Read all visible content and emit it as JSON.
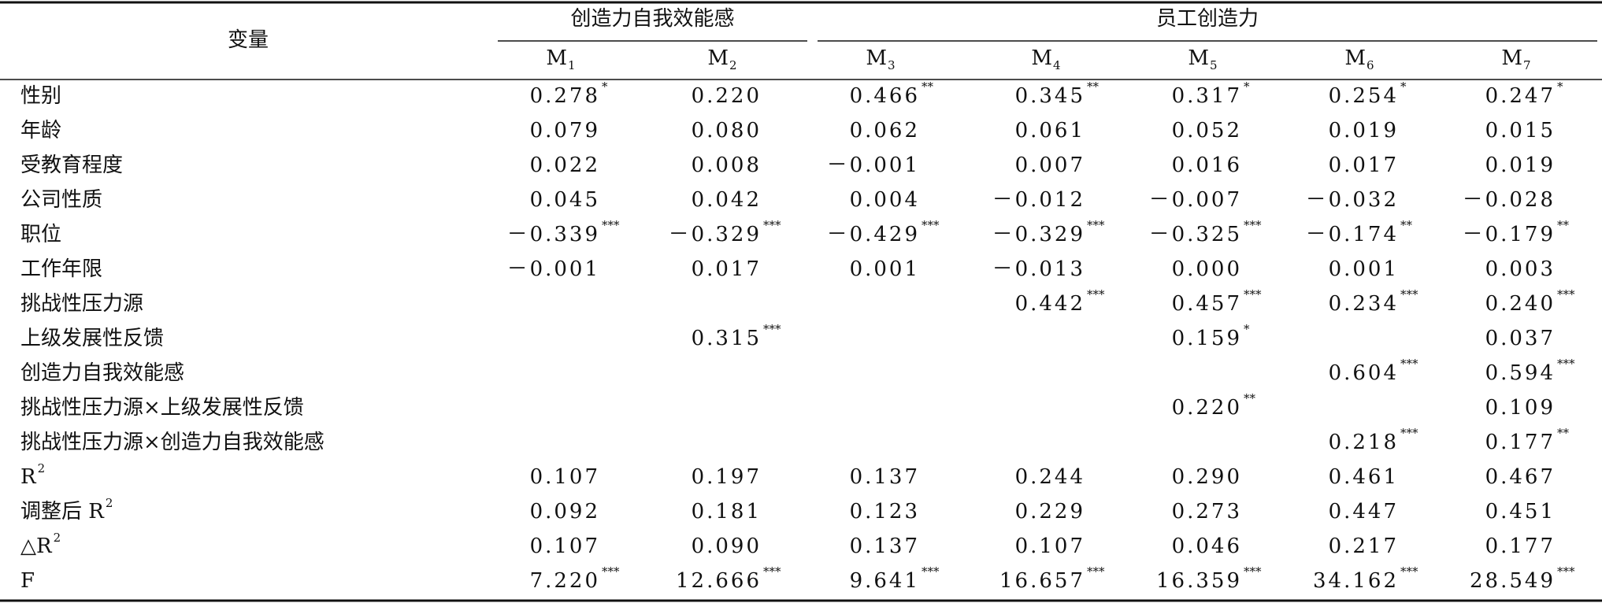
{
  "table": {
    "corner": "变量",
    "groups": [
      {
        "title": "创造力自我效能感",
        "span": [
          0,
          1
        ]
      },
      {
        "title": "员工创造力",
        "span": [
          2,
          6
        ]
      }
    ],
    "models": [
      {
        "text": "M",
        "sub": "1"
      },
      {
        "text": "M",
        "sub": "2"
      },
      {
        "text": "M",
        "sub": "3"
      },
      {
        "text": "M",
        "sub": "4"
      },
      {
        "text": "M",
        "sub": "5"
      },
      {
        "text": "M",
        "sub": "6"
      },
      {
        "text": "M",
        "sub": "7"
      }
    ],
    "rows": [
      {
        "label": "性别",
        "cells": [
          {
            "v": "0.278",
            "sig": "*"
          },
          {
            "v": "0.220"
          },
          {
            "v": "0.466",
            "sig": "**"
          },
          {
            "v": "0.345",
            "sig": "**"
          },
          {
            "v": "0.317",
            "sig": "*"
          },
          {
            "v": "0.254",
            "sig": "*"
          },
          {
            "v": "0.247",
            "sig": "*"
          }
        ]
      },
      {
        "label": "年龄",
        "cells": [
          {
            "v": "0.079"
          },
          {
            "v": "0.080"
          },
          {
            "v": "0.062"
          },
          {
            "v": "0.061"
          },
          {
            "v": "0.052"
          },
          {
            "v": "0.019"
          },
          {
            "v": "0.015"
          }
        ]
      },
      {
        "label": "受教育程度",
        "cells": [
          {
            "v": "0.022"
          },
          {
            "v": "0.008"
          },
          {
            "v": "－0.001"
          },
          {
            "v": "0.007"
          },
          {
            "v": "0.016"
          },
          {
            "v": "0.017"
          },
          {
            "v": "0.019"
          }
        ]
      },
      {
        "label": "公司性质",
        "cells": [
          {
            "v": "0.045"
          },
          {
            "v": "0.042"
          },
          {
            "v": "0.004"
          },
          {
            "v": "－0.012"
          },
          {
            "v": "－0.007"
          },
          {
            "v": "－0.032"
          },
          {
            "v": "－0.028"
          }
        ]
      },
      {
        "label": "职位",
        "cells": [
          {
            "v": "－0.339",
            "sig": "***"
          },
          {
            "v": "－0.329",
            "sig": "***"
          },
          {
            "v": "－0.429",
            "sig": "***"
          },
          {
            "v": "－0.329",
            "sig": "***"
          },
          {
            "v": "－0.325",
            "sig": "***"
          },
          {
            "v": "－0.174",
            "sig": "**"
          },
          {
            "v": "－0.179",
            "sig": "**"
          }
        ]
      },
      {
        "label": "工作年限",
        "cells": [
          {
            "v": "－0.001"
          },
          {
            "v": "0.017"
          },
          {
            "v": "0.001"
          },
          {
            "v": "－0.013"
          },
          {
            "v": "0.000"
          },
          {
            "v": "0.001"
          },
          {
            "v": "0.003"
          }
        ]
      },
      {
        "label": "挑战性压力源",
        "cells": [
          null,
          null,
          null,
          {
            "v": "0.442",
            "sig": "***"
          },
          {
            "v": "0.457",
            "sig": "***"
          },
          {
            "v": "0.234",
            "sig": "***"
          },
          {
            "v": "0.240",
            "sig": "***"
          }
        ]
      },
      {
        "label": "上级发展性反馈",
        "cells": [
          null,
          {
            "v": "0.315",
            "sig": "***"
          },
          null,
          null,
          {
            "v": "0.159",
            "sig": "*"
          },
          null,
          {
            "v": "0.037"
          }
        ]
      },
      {
        "label": "创造力自我效能感",
        "cells": [
          null,
          null,
          null,
          null,
          null,
          {
            "v": "0.604",
            "sig": "***"
          },
          {
            "v": "0.594",
            "sig": "***"
          }
        ]
      },
      {
        "label": "挑战性压力源×上级发展性反馈",
        "cells": [
          null,
          null,
          null,
          null,
          {
            "v": "0.220",
            "sig": "**"
          },
          null,
          {
            "v": "0.109"
          }
        ]
      },
      {
        "label": "挑战性压力源×创造力自我效能感",
        "cells": [
          null,
          null,
          null,
          null,
          null,
          {
            "v": "0.218",
            "sig": "***"
          },
          {
            "v": "0.177",
            "sig": "**"
          }
        ]
      },
      {
        "label": "R",
        "label_sup": "2",
        "cells": [
          {
            "v": "0.107"
          },
          {
            "v": "0.197"
          },
          {
            "v": "0.137"
          },
          {
            "v": "0.244"
          },
          {
            "v": "0.290"
          },
          {
            "v": "0.461"
          },
          {
            "v": "0.467"
          }
        ]
      },
      {
        "label": "调整后 R",
        "label_sup": "2",
        "cells": [
          {
            "v": "0.092"
          },
          {
            "v": "0.181"
          },
          {
            "v": "0.123"
          },
          {
            "v": "0.229"
          },
          {
            "v": "0.273"
          },
          {
            "v": "0.447"
          },
          {
            "v": "0.451"
          }
        ]
      },
      {
        "label": "△R",
        "label_sup": "2",
        "cells": [
          {
            "v": "0.107"
          },
          {
            "v": "0.090"
          },
          {
            "v": "0.137"
          },
          {
            "v": "0.107"
          },
          {
            "v": "0.046"
          },
          {
            "v": "0.217"
          },
          {
            "v": "0.177"
          }
        ]
      },
      {
        "label": "F",
        "cells": [
          {
            "v": "7.220",
            "sig": "***"
          },
          {
            "v": "12.666",
            "sig": "***"
          },
          {
            "v": "9.641",
            "sig": "***"
          },
          {
            "v": "16.657",
            "sig": "***"
          },
          {
            "v": "16.359",
            "sig": "***"
          },
          {
            "v": "34.162",
            "sig": "***"
          },
          {
            "v": "28.549",
            "sig": "***"
          }
        ]
      }
    ]
  }
}
